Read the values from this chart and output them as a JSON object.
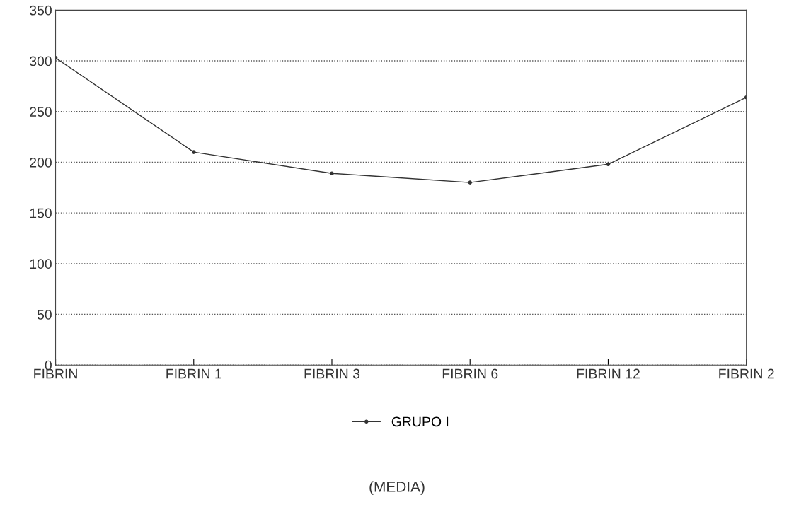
{
  "chart_data": {
    "type": "line",
    "categories": [
      "FIBRIN",
      "FIBRIN 1",
      "FIBRIN 3",
      "FIBRIN 6",
      "FIBRIN 12",
      "FIBRIN 2"
    ],
    "series": [
      {
        "name": "GRUPO I",
        "color": "#333333",
        "values": [
          303,
          210,
          189,
          180,
          198,
          264
        ]
      }
    ],
    "ylim": [
      0,
      350
    ],
    "yticks": [
      0,
      50,
      100,
      150,
      200,
      250,
      300,
      350
    ],
    "grid": "y",
    "legend": "bottom",
    "marker": "circle",
    "line_style": "solid",
    "annotations": [
      "(MEDIA)"
    ]
  }
}
